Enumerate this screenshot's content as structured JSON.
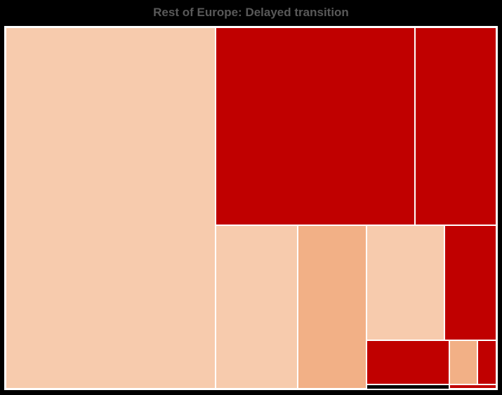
{
  "chart_data": {
    "type": "treemap",
    "title": "Rest of Europe: Delayed transition",
    "colors": {
      "light": "#F7CBAD",
      "medium": "#F2B086",
      "dark": "#C00000",
      "border": "#FFFFFF",
      "background": "#000000"
    },
    "tiles": [
      {
        "shade": "light",
        "value": 32.6
      },
      {
        "shade": "dark",
        "value": 17.0
      },
      {
        "shade": "dark",
        "value": 7.0
      },
      {
        "shade": "light",
        "value": 5.5
      },
      {
        "shade": "medium",
        "value": 4.6
      },
      {
        "shade": "light",
        "value": 3.9
      },
      {
        "shade": "dark",
        "value": 2.6
      },
      {
        "shade": "dark",
        "value": 1.7
      },
      {
        "shade": "medium",
        "value": 0.6
      },
      {
        "shade": "dark",
        "value": 0.4
      },
      {
        "shade": "dark",
        "value": 0.1
      }
    ]
  }
}
